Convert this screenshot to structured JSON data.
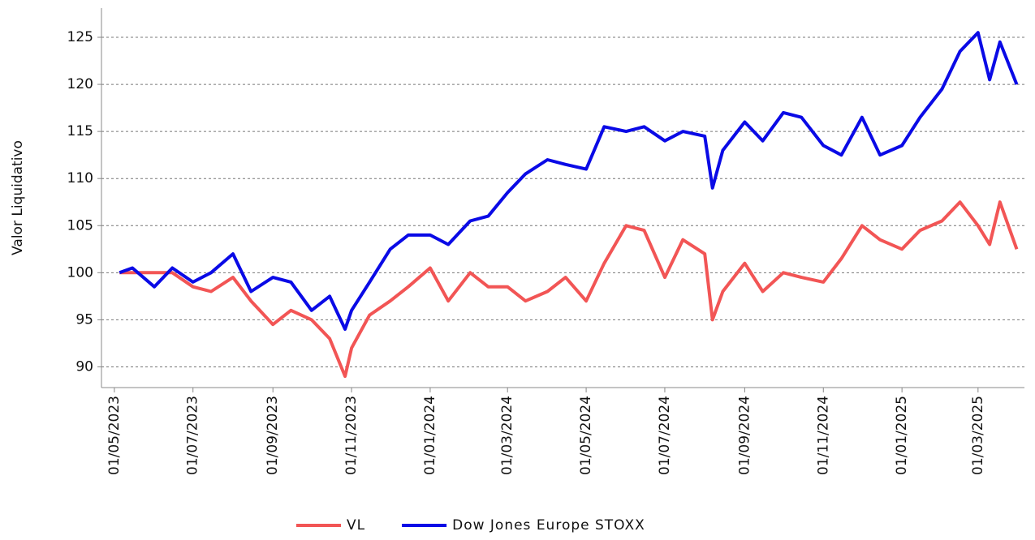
{
  "chart_data": {
    "type": "line",
    "y_label": "Valor Liquidativo",
    "x": [
      "2023-05-05",
      "2023-05-15",
      "2023-06-01",
      "2023-06-15",
      "2023-07-01",
      "2023-07-15",
      "2023-08-01",
      "2023-08-15",
      "2023-09-01",
      "2023-09-15",
      "2023-10-01",
      "2023-10-15",
      "2023-10-27",
      "2023-11-01",
      "2023-11-15",
      "2023-12-01",
      "2023-12-15",
      "2024-01-01",
      "2024-01-15",
      "2024-02-01",
      "2024-02-15",
      "2024-03-01",
      "2024-03-15",
      "2024-04-01",
      "2024-04-15",
      "2024-05-01",
      "2024-05-15",
      "2024-06-01",
      "2024-06-15",
      "2024-07-01",
      "2024-07-15",
      "2024-08-01",
      "2024-08-07",
      "2024-08-15",
      "2024-09-01",
      "2024-09-15",
      "2024-10-01",
      "2024-10-15",
      "2024-11-01",
      "2024-11-15",
      "2024-12-01",
      "2024-12-15",
      "2025-01-01",
      "2025-01-15",
      "2025-02-01",
      "2025-02-15",
      "2025-03-01",
      "2025-03-10",
      "2025-03-18",
      "2025-03-31"
    ],
    "series": [
      {
        "name": "VL",
        "color": "#f25555",
        "values": [
          100,
          100,
          100,
          100,
          98.5,
          98,
          99.5,
          97,
          94.5,
          96,
          95,
          93,
          89,
          92,
          95.5,
          97,
          98.5,
          100.5,
          97,
          100,
          98.5,
          98.5,
          97,
          98,
          99.5,
          97,
          101,
          105,
          104.5,
          99.5,
          103.5,
          102,
          95,
          98,
          101,
          98,
          100,
          99.5,
          99,
          101.5,
          105,
          103.5,
          102.5,
          104.5,
          105.5,
          107.5,
          105,
          103,
          107.5,
          102.5
        ]
      },
      {
        "name": "Dow Jones Europe STOXX",
        "color": "#0a0ae6",
        "values": [
          100,
          100.5,
          98.5,
          100.5,
          99,
          100,
          102,
          98,
          99.5,
          99,
          96,
          97.5,
          94,
          96,
          99,
          102.5,
          104,
          104,
          103,
          105.5,
          106,
          108.5,
          110.5,
          112,
          111.5,
          111,
          115.5,
          115,
          115.5,
          114,
          115,
          114.5,
          109,
          113,
          116,
          114,
          117,
          116.5,
          113.5,
          112.5,
          116.5,
          112.5,
          113.5,
          116.5,
          119.5,
          123.5,
          125.5,
          120.5,
          124.5,
          120
        ]
      }
    ],
    "xlim": [
      "2023-04-21",
      "2025-04-06"
    ],
    "xticks": [
      {
        "value": "2023-05-01",
        "label": "01/05/2023"
      },
      {
        "value": "2023-07-01",
        "label": "01/07/2023"
      },
      {
        "value": "2023-09-01",
        "label": "01/09/2023"
      },
      {
        "value": "2023-11-01",
        "label": "01/11/2023"
      },
      {
        "value": "2024-01-01",
        "label": "01/01/2024"
      },
      {
        "value": "2024-03-01",
        "label": "01/03/2024"
      },
      {
        "value": "2024-05-01",
        "label": "01/05/2024"
      },
      {
        "value": "2024-07-01",
        "label": "01/07/2024"
      },
      {
        "value": "2024-09-01",
        "label": "01/09/2024"
      },
      {
        "value": "2024-11-01",
        "label": "01/11/2024"
      },
      {
        "value": "2025-01-01",
        "label": "01/01/2025"
      },
      {
        "value": "2025-03-01",
        "label": "01/03/2025"
      }
    ],
    "ylim": [
      87.8,
      128.1
    ],
    "yticks": [
      90,
      95,
      100,
      105,
      110,
      115,
      120,
      125
    ],
    "grid": true,
    "legend": "bottom"
  }
}
